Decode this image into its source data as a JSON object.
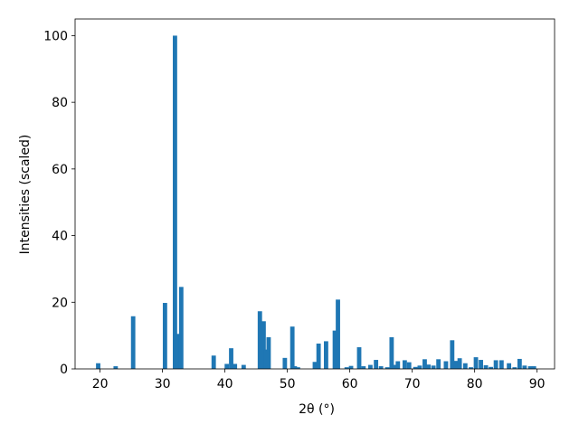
{
  "chart_data": {
    "type": "bar",
    "x_label": "2θ (°)",
    "y_label": "Intensities (scaled)",
    "color": "#1f77b4",
    "x": [
      19.7,
      22.5,
      25.3,
      30.4,
      32.0,
      32.5,
      33.0,
      38.2,
      40.3,
      41.0,
      41.6,
      43.0,
      45.6,
      46.2,
      46.6,
      47.0,
      49.6,
      50.8,
      51.2,
      51.7,
      54.4,
      55.0,
      56.2,
      57.6,
      58.1,
      59.5,
      60.2,
      61.5,
      62.2,
      63.3,
      64.2,
      65.0,
      66.0,
      66.7,
      67.2,
      67.7,
      68.8,
      69.5,
      70.5,
      71.2,
      72.0,
      72.6,
      73.4,
      74.2,
      75.4,
      76.4,
      77.0,
      77.6,
      78.5,
      79.4,
      80.2,
      81.0,
      81.8,
      82.6,
      83.4,
      84.3,
      85.5,
      86.4,
      87.2,
      88.0,
      88.9,
      89.5
    ],
    "values": [
      1.7,
      0.8,
      15.8,
      19.8,
      100,
      10.5,
      24.6,
      4.0,
      1.5,
      6.2,
      1.5,
      1.2,
      17.3,
      14.3,
      5.8,
      9.5,
      3.3,
      12.7,
      0.8,
      0.5,
      2.1,
      7.6,
      8.3,
      11.5,
      20.8,
      0.5,
      0.9,
      6.5,
      0.8,
      1.2,
      2.7,
      0.8,
      0.5,
      9.5,
      1.2,
      2.3,
      2.6,
      2.0,
      0.6,
      1.0,
      2.9,
      1.3,
      1.0,
      2.9,
      2.3,
      8.6,
      2.4,
      3.2,
      1.7,
      0.5,
      3.5,
      2.7,
      1.1,
      0.6,
      2.6,
      2.6,
      1.7,
      0.5,
      3.0,
      1.0,
      0.8,
      0.8
    ],
    "xlim": [
      16,
      92.8
    ],
    "xticks": [
      20,
      30,
      40,
      50,
      60,
      70,
      80,
      90
    ],
    "ylim": [
      0,
      105
    ],
    "yticks": [
      0,
      20,
      40,
      60,
      80,
      100
    ]
  }
}
